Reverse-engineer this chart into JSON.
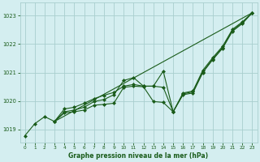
{
  "title": "Graphe pression niveau de la mer (hPa)",
  "background_color": "#d4eef0",
  "grid_color": "#a8cece",
  "line_color": "#1a5c1a",
  "marker_color": "#1a5c1a",
  "xlim": [
    -0.5,
    23.5
  ],
  "ylim": [
    1018.55,
    1023.45
  ],
  "yticks": [
    1019,
    1020,
    1021,
    1022,
    1023
  ],
  "xticks": [
    0,
    1,
    2,
    3,
    4,
    5,
    6,
    7,
    8,
    9,
    10,
    11,
    12,
    13,
    14,
    15,
    16,
    17,
    18,
    19,
    20,
    21,
    22,
    23
  ],
  "series1": [
    [
      0,
      1018.78
    ],
    [
      1,
      1019.2
    ],
    [
      2,
      1019.45
    ],
    [
      3,
      1019.28
    ],
    [
      4,
      1019.58
    ],
    [
      5,
      1019.62
    ],
    [
      6,
      1019.68
    ],
    [
      7,
      1019.85
    ],
    [
      8,
      1019.88
    ],
    [
      9,
      1019.92
    ],
    [
      10,
      1020.48
    ],
    [
      11,
      1020.52
    ],
    [
      12,
      1020.5
    ],
    [
      13,
      1019.98
    ],
    [
      14,
      1019.95
    ],
    [
      15,
      1019.62
    ],
    [
      16,
      1020.22
    ],
    [
      17,
      1020.28
    ],
    [
      18,
      1021.0
    ],
    [
      19,
      1021.45
    ],
    [
      20,
      1021.85
    ],
    [
      21,
      1022.45
    ],
    [
      22,
      1022.72
    ],
    [
      23,
      1023.1
    ]
  ],
  "series2": [
    [
      3,
      1019.28
    ],
    [
      4,
      1019.72
    ],
    [
      5,
      1019.78
    ],
    [
      6,
      1019.92
    ],
    [
      7,
      1020.08
    ],
    [
      8,
      1020.2
    ],
    [
      9,
      1020.3
    ],
    [
      10,
      1020.52
    ],
    [
      11,
      1020.58
    ],
    [
      12,
      1020.52
    ],
    [
      13,
      1020.52
    ],
    [
      14,
      1020.48
    ],
    [
      15,
      1019.62
    ],
    [
      16,
      1020.25
    ],
    [
      17,
      1020.32
    ],
    [
      18,
      1021.02
    ],
    [
      19,
      1021.48
    ],
    [
      20,
      1021.88
    ],
    [
      21,
      1022.48
    ],
    [
      22,
      1022.75
    ],
    [
      23,
      1023.1
    ]
  ],
  "series3": [
    [
      3,
      1019.28
    ],
    [
      4,
      1019.62
    ],
    [
      5,
      1019.68
    ],
    [
      6,
      1019.78
    ],
    [
      7,
      1019.98
    ],
    [
      8,
      1020.05
    ],
    [
      9,
      1020.22
    ],
    [
      10,
      1020.72
    ],
    [
      11,
      1020.82
    ],
    [
      12,
      1020.52
    ],
    [
      13,
      1020.52
    ],
    [
      14,
      1021.05
    ],
    [
      15,
      1019.62
    ],
    [
      16,
      1020.28
    ],
    [
      17,
      1020.35
    ],
    [
      18,
      1021.08
    ],
    [
      19,
      1021.52
    ],
    [
      20,
      1021.92
    ],
    [
      21,
      1022.52
    ],
    [
      22,
      1022.78
    ],
    [
      23,
      1023.1
    ]
  ],
  "trend_line": [
    [
      3,
      1019.28
    ],
    [
      23,
      1023.1
    ]
  ]
}
